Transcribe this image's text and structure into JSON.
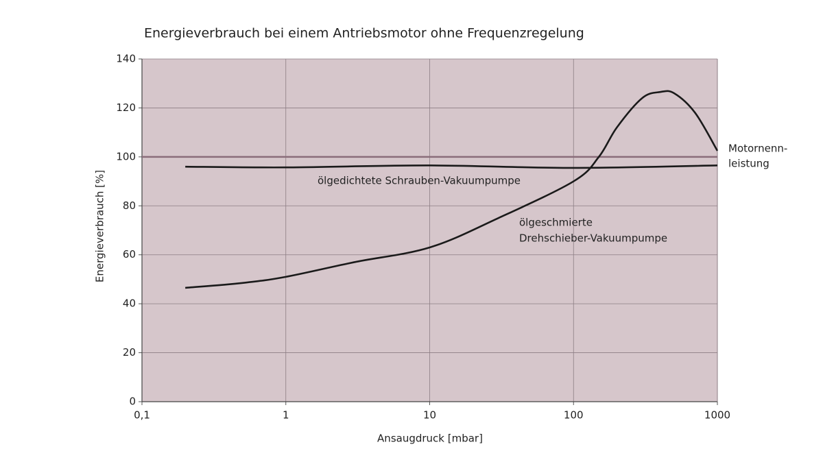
{
  "chart_data": {
    "type": "line",
    "title": "Energieverbrauch bei einem Antriebsmotor ohne Frequenzregelung",
    "x_label": "Ansaugdruck [mbar]",
    "y_label": "Energieverbrauch [%]",
    "x_log": true,
    "xlim": [
      0.1,
      1000
    ],
    "xticks": [
      {
        "value": 0.1,
        "label": "0,1"
      },
      1,
      10,
      100,
      1000
    ],
    "ylim": [
      0,
      140
    ],
    "yticks": [
      0,
      20,
      40,
      60,
      80,
      100,
      120,
      140
    ],
    "grid": true,
    "background": "#d6c6cb",
    "reference_line": {
      "value": 100,
      "color": "#8a6d7a",
      "label_lines": [
        "Motornenn-",
        "leistung"
      ]
    },
    "series": [
      {
        "name_lines": [
          "ölgedichtete Schrauben-Vakuumpumpe"
        ],
        "color": "#1a1a1a",
        "x": [
          0.2,
          1,
          10,
          100,
          1000
        ],
        "values": [
          96,
          95.7,
          96.5,
          95.5,
          96.5
        ]
      },
      {
        "name_lines": [
          "ölgeschmierte",
          "Drehschieber-Vakuumpumpe"
        ],
        "color": "#1a1a1a",
        "x": [
          0.2,
          0.5,
          1,
          3,
          10,
          30,
          100,
          150,
          200,
          300,
          400,
          500,
          700,
          1000
        ],
        "values": [
          46.5,
          48.5,
          51,
          57,
          63,
          75,
          90,
          100,
          112,
          124,
          126.5,
          126,
          118,
          102.5
        ]
      }
    ]
  }
}
